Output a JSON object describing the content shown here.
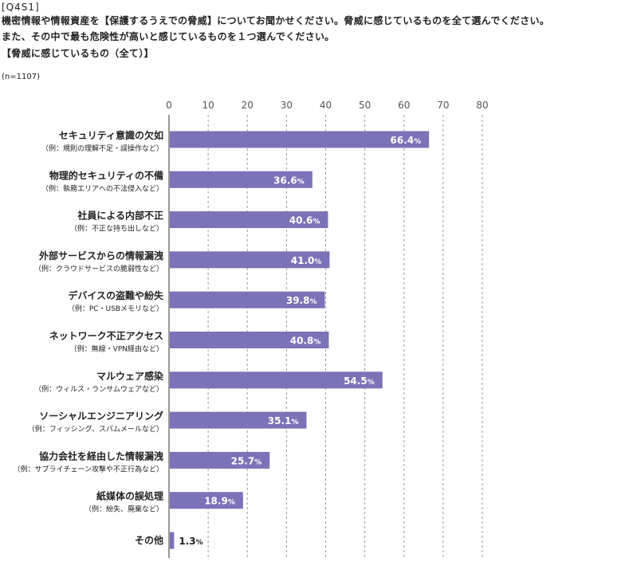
{
  "question": {
    "id": "[Q4S1]",
    "line1": "機密情報や情報資産を【保護するうえでの脅威】についてお聞かせください。脅威に感じているものを全て選んでください。",
    "line2": "また、その中で最も危険性が高いと感じているものを１つ選んでください。",
    "line3": "【脅威に感じているもの（全て）】",
    "sample": "(n=1107)"
  },
  "colors": {
    "bar": "#7b72b8",
    "grid": "#9a9a9a",
    "axis": "#333333",
    "label_in": "#ffffff",
    "label_out": "#222222"
  },
  "chart_data": {
    "type": "bar",
    "orientation": "horizontal",
    "xlim": [
      0,
      80
    ],
    "ticks": [
      "0",
      "10",
      "20",
      "30",
      "40",
      "50",
      "60",
      "70",
      "80"
    ],
    "grid": true,
    "categories": [
      {
        "name": "セキュリティ意識の欠如",
        "note": "（例：規則の理解不足・誤操作など）"
      },
      {
        "name": "物理的セキュリティの不備",
        "note": "（例：執務エリアへの不法侵入など）"
      },
      {
        "name": "社員による内部不正",
        "note": "（例：不正な持ち出しなど）"
      },
      {
        "name": "外部サービスからの情報漏洩",
        "note": "（例：クラウドサービスの脆弱性など）"
      },
      {
        "name": "デバイスの盗難や紛失",
        "note": "（例：PC・USBメモリなど）"
      },
      {
        "name": "ネットワーク不正アクセス",
        "note": "（例：無線・VPN経由など）"
      },
      {
        "name": "マルウェア感染",
        "note": "（例：ウィルス・ランサムウェアなど）"
      },
      {
        "name": "ソーシャルエンジニアリング",
        "note": "（例：フィッシング、スパムメールなど）"
      },
      {
        "name": "協力会社を経由した情報漏洩",
        "note": "（例：サプライチェーン攻撃や不正行為など）"
      },
      {
        "name": "紙媒体の誤処理",
        "note": "（例：紛失、廃棄など）"
      },
      {
        "name": "その他",
        "note": ""
      }
    ],
    "values": [
      66.4,
      36.6,
      40.6,
      41.0,
      39.8,
      40.8,
      54.5,
      35.1,
      25.7,
      18.9,
      1.3
    ],
    "value_labels": [
      "66.4",
      "36.6",
      "40.6",
      "41.0",
      "39.8",
      "40.8",
      "54.5",
      "35.1",
      "25.7",
      "18.9",
      "1.3"
    ],
    "unit": "%"
  }
}
